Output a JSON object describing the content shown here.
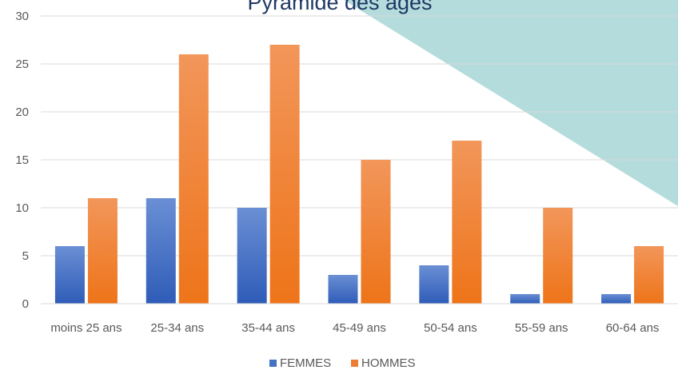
{
  "chart_data": {
    "type": "bar",
    "title": "Pyramide des âges",
    "categories": [
      "moins 25 ans",
      "25-34 ans",
      "35-44 ans",
      "45-49 ans",
      "50-54 ans",
      "55-59 ans",
      "60-64 ans"
    ],
    "series": [
      {
        "name": "FEMMES",
        "values": [
          6,
          11,
          10,
          3,
          4,
          1,
          1
        ],
        "color": "#4472c4"
      },
      {
        "name": "HOMMES",
        "values": [
          11,
          26,
          27,
          15,
          17,
          10,
          6
        ],
        "color": "#ed7d31"
      }
    ],
    "yticks": [
      "0",
      "5",
      "10",
      "15",
      "20",
      "25",
      "30"
    ],
    "ylim": [
      0,
      30
    ],
    "grid": true,
    "legend_position": "bottom",
    "background_shape_color": "#b5dcdc"
  }
}
